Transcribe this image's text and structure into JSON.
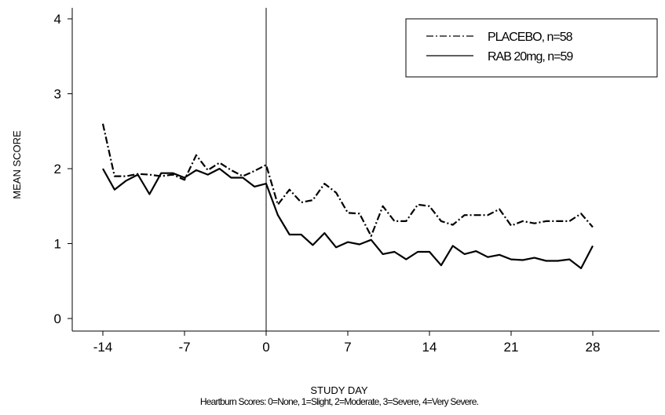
{
  "chart_data": {
    "type": "line",
    "title": "",
    "xlabel": "STUDY DAY",
    "ylabel": "MEAN SCORE",
    "footnote": "Heartburn Scores: 0=None, 1=Slight, 2=Moderate, 3=Severe, 4=Very Severe.",
    "xlim": [
      -14,
      28
    ],
    "ylim": [
      0,
      4
    ],
    "x_ticks": [
      -14,
      -7,
      0,
      7,
      14,
      21,
      28
    ],
    "x_tick_labels": [
      "-14",
      "-7",
      "0",
      "7",
      "14",
      "21",
      "28"
    ],
    "y_ticks": [
      0,
      1,
      2,
      3,
      4
    ],
    "y_tick_labels": [
      "0",
      "1",
      "2",
      "3",
      "4"
    ],
    "reference_line_x": 0,
    "grid": false,
    "legend_position": "top-right",
    "x": [
      -14,
      -13,
      -12,
      -11,
      -10,
      -9,
      -8,
      -7,
      -6,
      -5,
      -4,
      -3,
      -2,
      -1,
      0,
      1,
      2,
      3,
      4,
      5,
      6,
      7,
      8,
      9,
      10,
      11,
      12,
      13,
      14,
      15,
      16,
      17,
      18,
      19,
      20,
      21,
      22,
      23,
      24,
      25,
      26,
      27,
      28
    ],
    "series": [
      {
        "name": "PLACEBO, n=58",
        "style": "dash-dot",
        "color": "#000000",
        "values": [
          2.6,
          1.9,
          1.9,
          1.93,
          1.92,
          1.9,
          1.92,
          1.85,
          2.18,
          1.98,
          2.08,
          1.98,
          1.9,
          1.97,
          2.05,
          1.52,
          1.72,
          1.55,
          1.58,
          1.8,
          1.68,
          1.41,
          1.4,
          1.1,
          1.5,
          1.3,
          1.3,
          1.52,
          1.5,
          1.3,
          1.25,
          1.38,
          1.38,
          1.38,
          1.46,
          1.24,
          1.3,
          1.27,
          1.3,
          1.3,
          1.3,
          1.4,
          1.22
        ]
      },
      {
        "name": "RAB 20mg, n=59",
        "style": "solid",
        "color": "#000000",
        "values": [
          2.0,
          1.72,
          1.84,
          1.92,
          1.66,
          1.94,
          1.94,
          1.88,
          1.98,
          1.92,
          2.0,
          1.88,
          1.88,
          1.76,
          1.8,
          1.38,
          1.12,
          1.12,
          0.98,
          1.14,
          0.95,
          1.02,
          0.99,
          1.05,
          0.86,
          0.89,
          0.79,
          0.89,
          0.89,
          0.71,
          0.97,
          0.86,
          0.9,
          0.82,
          0.85,
          0.79,
          0.78,
          0.81,
          0.77,
          0.77,
          0.79,
          0.67,
          0.97
        ]
      }
    ]
  }
}
